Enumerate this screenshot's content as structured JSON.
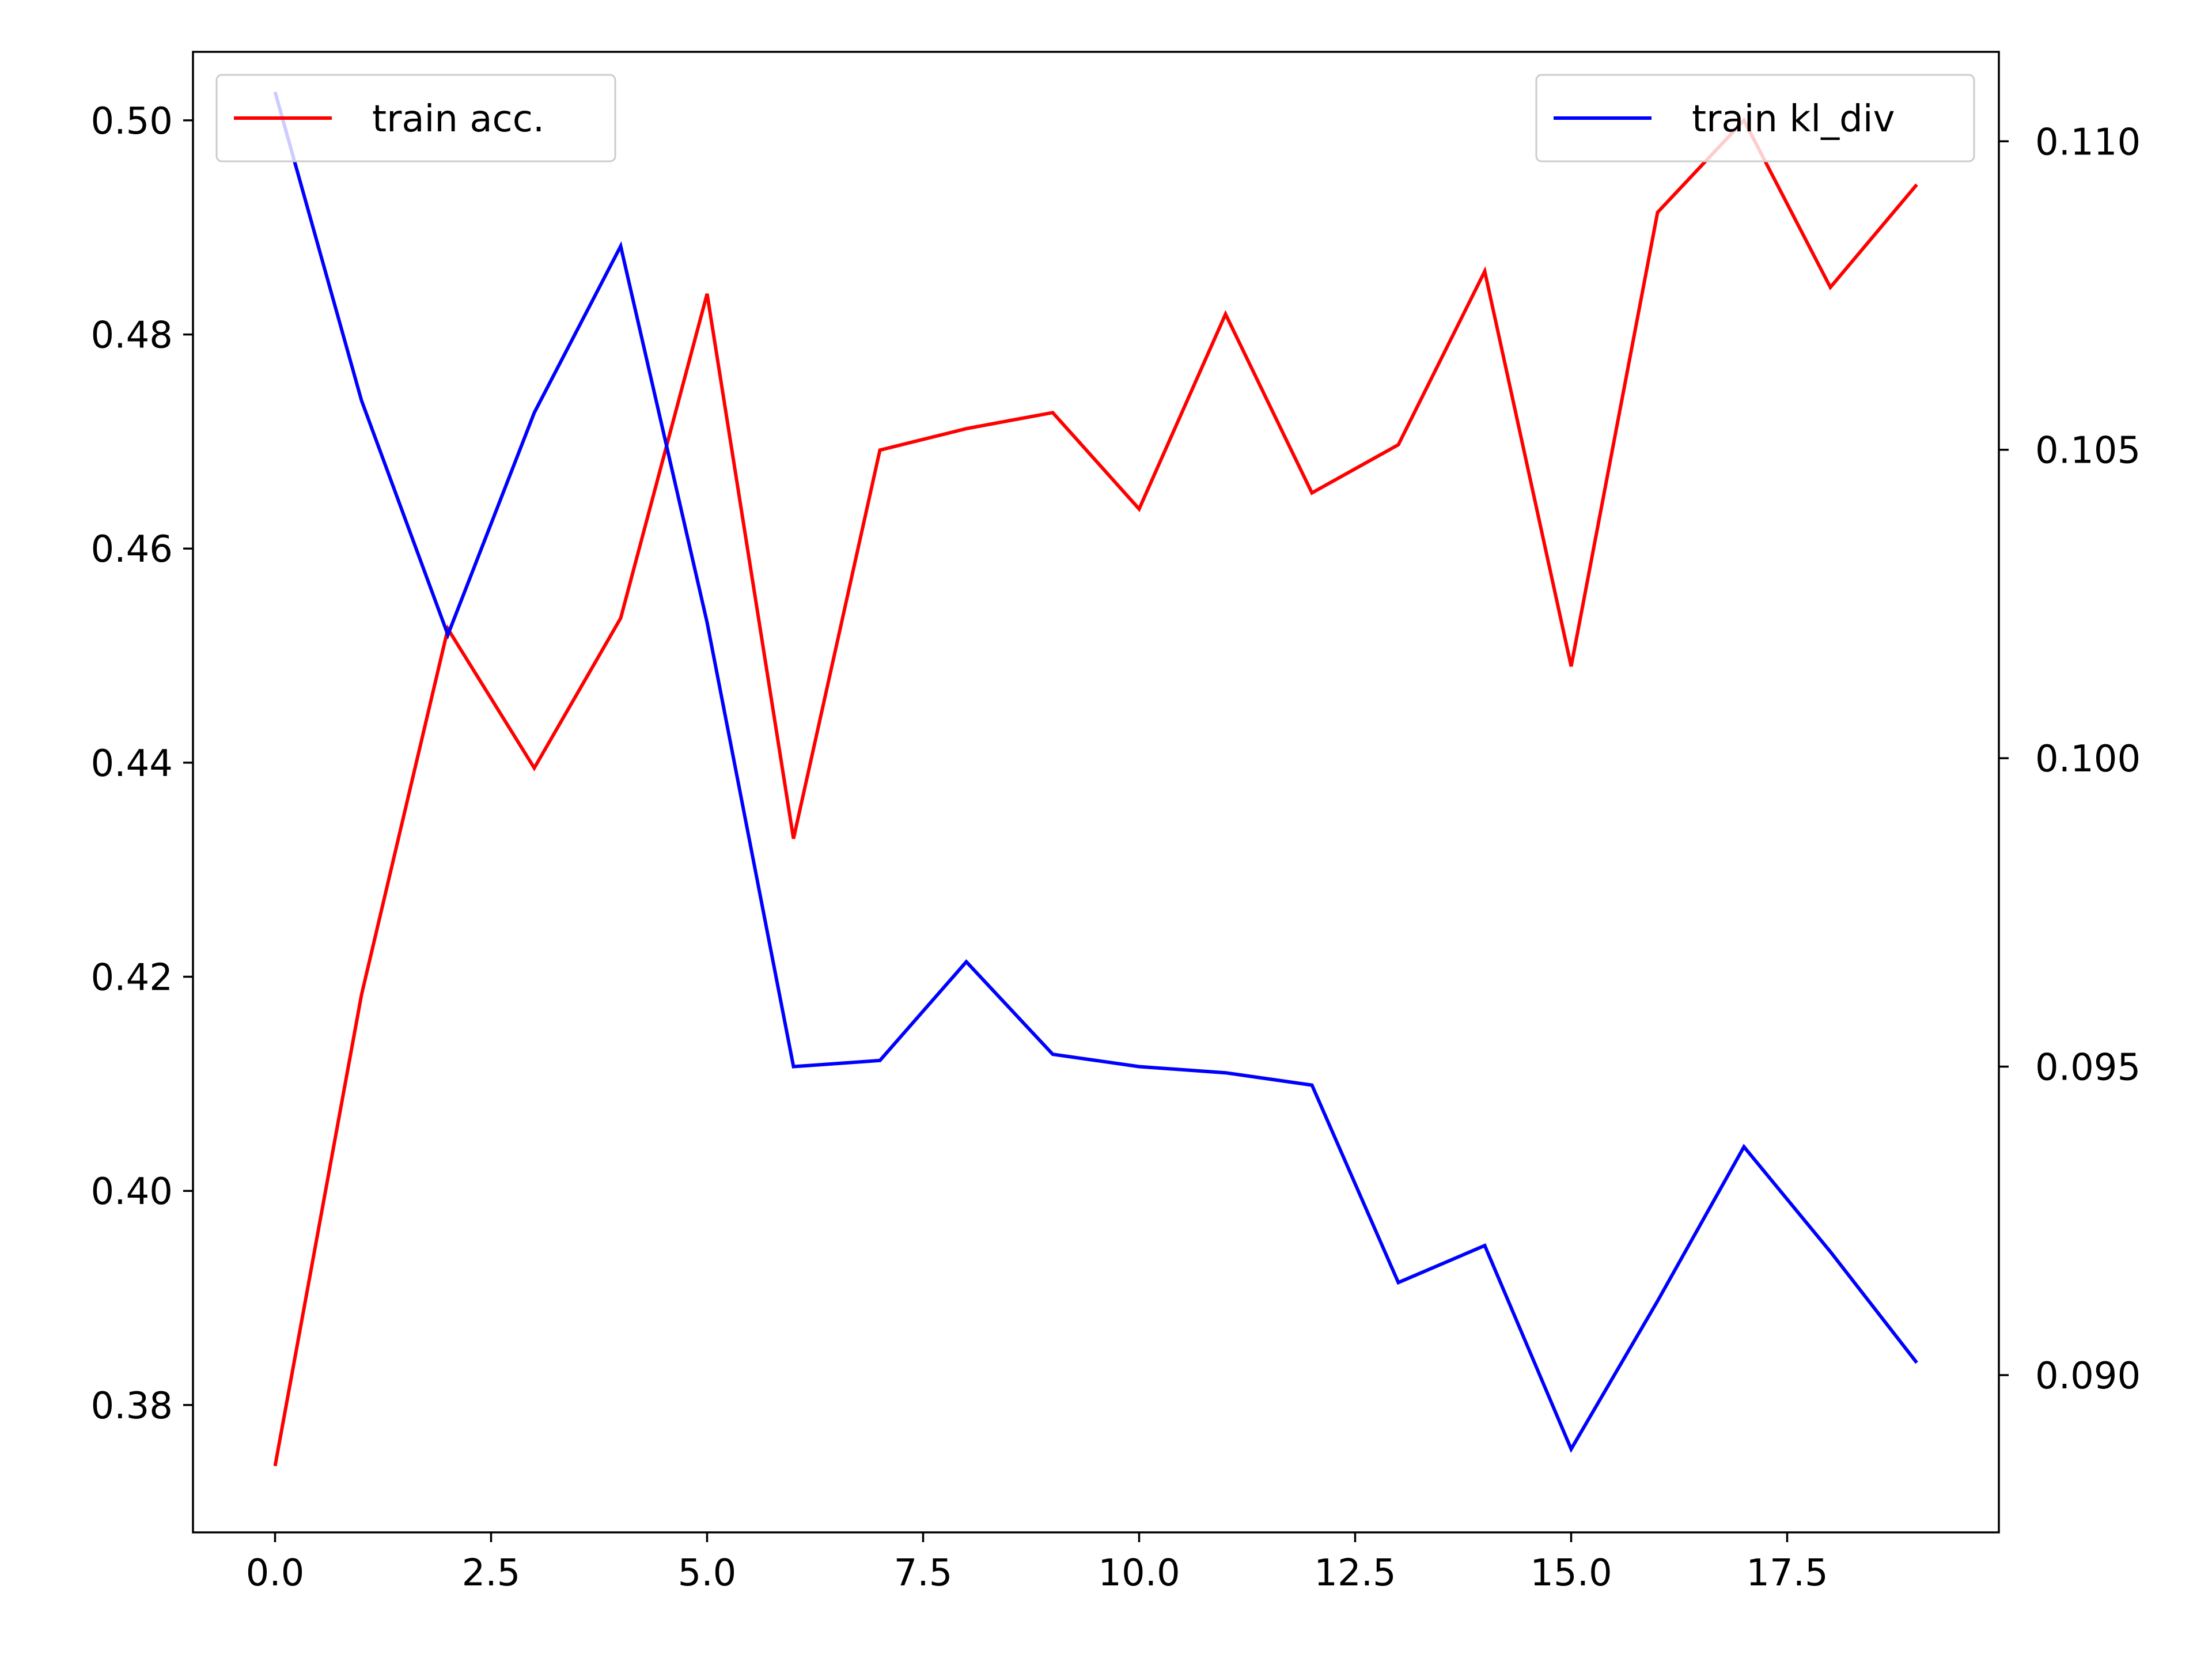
{
  "chart_data": {
    "type": "line",
    "x": [
      0,
      1,
      2,
      3,
      4,
      5,
      6,
      7,
      8,
      9,
      10,
      11,
      12,
      13,
      14,
      15,
      16,
      17,
      18,
      19
    ],
    "x_ticks": [
      "0.0",
      "2.5",
      "5.0",
      "7.5",
      "10.0",
      "12.5",
      "15.0",
      "17.5"
    ],
    "x_tick_values": [
      0,
      2.5,
      5,
      7.5,
      10,
      12.5,
      15,
      17.5
    ],
    "xlim": [
      -0.95,
      19.95
    ],
    "y_left": {
      "lim": [
        0.3681,
        0.5064
      ],
      "ticks": [
        "0.38",
        "0.40",
        "0.42",
        "0.44",
        "0.46",
        "0.48",
        "0.50"
      ],
      "tick_values": [
        0.38,
        0.4,
        0.42,
        0.44,
        0.46,
        0.48,
        0.5
      ]
    },
    "y_right": {
      "lim": [
        0.08745,
        0.11145
      ],
      "ticks": [
        "0.090",
        "0.095",
        "0.100",
        "0.105",
        "0.110"
      ],
      "tick_values": [
        0.09,
        0.095,
        0.1,
        0.105,
        0.11
      ]
    },
    "series": [
      {
        "name": "train acc.",
        "axis": "left",
        "color": "#ff0000",
        "legend_position": "top-left",
        "values": [
          0.3743,
          0.4183,
          0.4525,
          0.4395,
          0.4535,
          0.4838,
          0.4329,
          0.4692,
          0.4712,
          0.4727,
          0.4637,
          0.4819,
          0.4652,
          0.4697,
          0.4859,
          0.449,
          0.4914,
          0.5,
          0.4844,
          0.494
        ]
      },
      {
        "name": "train kl_div",
        "axis": "right",
        "color": "#0000ff",
        "legend_position": "top-right",
        "values": [
          0.1108,
          0.1058,
          0.102,
          0.1056,
          0.1083,
          0.1022,
          0.095,
          0.0951,
          0.0967,
          0.0952,
          0.095,
          0.0949,
          0.0947,
          0.0915,
          0.0921,
          0.0888,
          0.0912,
          0.0937,
          0.092,
          0.0902
        ]
      }
    ],
    "grid": false
  }
}
